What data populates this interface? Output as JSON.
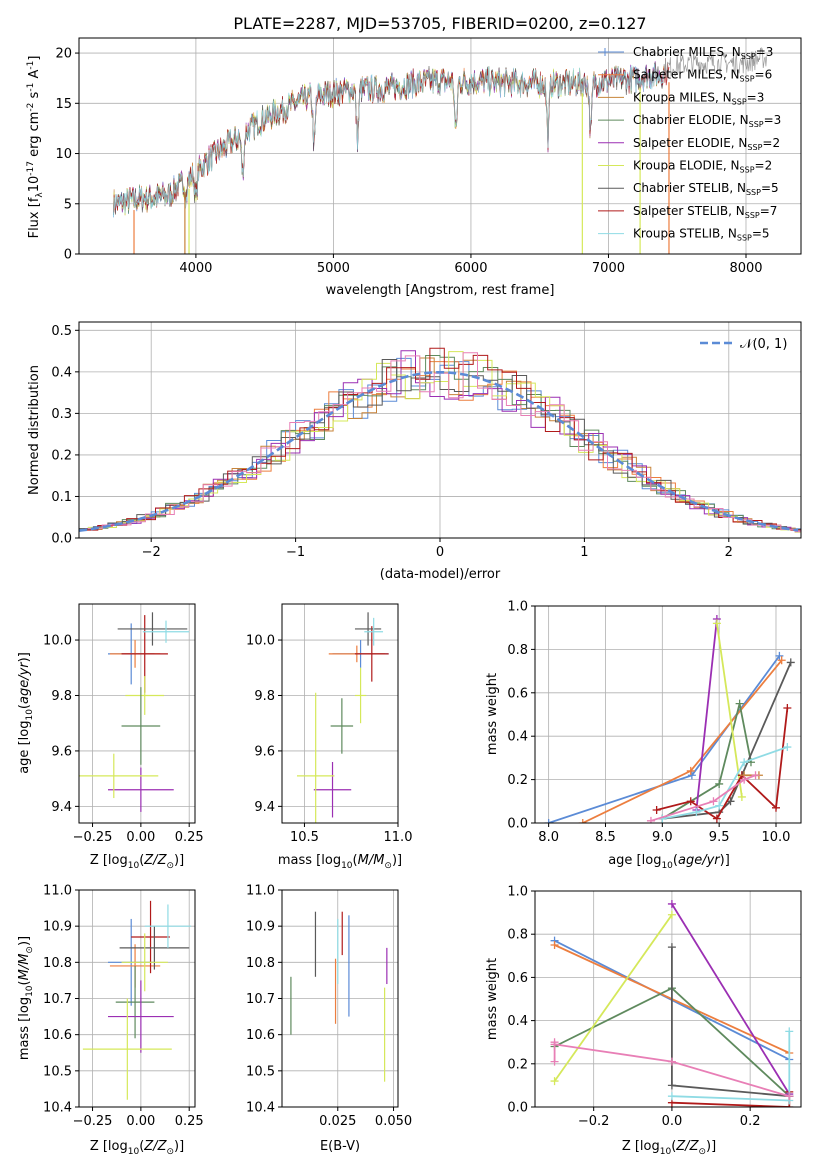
{
  "figure_title": "PLATE=2287, MJD=53705, FIBERID=0200, z=0.127",
  "series_styles": [
    {
      "name": "Chabrier MILES",
      "nssp": "3",
      "color": "#5b8bd6"
    },
    {
      "name": "Salpeter MILES",
      "nssp": "6",
      "color": "#ec7e3f"
    },
    {
      "name": "Kroupa MILES",
      "nssp": "3",
      "color": "#c7843a"
    },
    {
      "name": "Chabrier ELODIE",
      "nssp": "3",
      "color": "#5f8a5e"
    },
    {
      "name": "Salpeter ELODIE",
      "nssp": "2",
      "color": "#9b2fb3"
    },
    {
      "name": "Kroupa ELODIE",
      "nssp": "2",
      "color": "#d5e85a"
    },
    {
      "name": "Chabrier STELIB",
      "nssp": "5",
      "color": "#5a5a5a"
    },
    {
      "name": "Salpeter STELIB",
      "nssp": "7",
      "color": "#b01a1a"
    },
    {
      "name": "Kroupa STELIB",
      "nssp": "5",
      "color": "#8fdbe4"
    }
  ],
  "chart_data": [
    {
      "id": "spectrum",
      "type": "line",
      "xlabel": "wavelength [Angstrom, rest frame]",
      "ylabel": "Flux [f$_\\lambda$10$^{-17}$ erg cm$^{-2}$ s$^{-1}$ A$^{-1}$]",
      "xlim": [
        3150,
        8400
      ],
      "ylim": [
        0,
        21.5
      ],
      "xticks": [
        4000,
        5000,
        6000,
        7000,
        8000
      ],
      "yticks": [
        0,
        5,
        10,
        15,
        20
      ],
      "legend_position": "top-right",
      "legend": [
        {
          "label": "Chabrier MILES, N",
          "sub": "SSP",
          "val": "=3"
        },
        {
          "label": "Salpeter MILES, N",
          "sub": "SSP",
          "val": "=6"
        },
        {
          "label": "Kroupa MILES, N",
          "sub": "SSP",
          "val": "=3"
        },
        {
          "label": "Chabrier ELODIE, N",
          "sub": "SSP",
          "val": "=3"
        },
        {
          "label": "Salpeter ELODIE, N",
          "sub": "SSP",
          "val": "=2"
        },
        {
          "label": "Kroupa ELODIE, N",
          "sub": "SSP",
          "val": "=2"
        },
        {
          "label": "Chabrier STELIB, N",
          "sub": "SSP",
          "val": "=5"
        },
        {
          "label": "Salpeter STELIB, N",
          "sub": "SSP",
          "val": "=7"
        },
        {
          "label": "Kroupa STELIB, N",
          "sub": "SSP",
          "val": "=5"
        }
      ],
      "continuum": [
        [
          3400,
          5
        ],
        [
          3600,
          5.5
        ],
        [
          3800,
          5.8
        ],
        [
          3950,
          7.5
        ],
        [
          4100,
          9.5
        ],
        [
          4300,
          11.5
        ],
        [
          4500,
          13.5
        ],
        [
          4800,
          15.5
        ],
        [
          5100,
          16.3
        ],
        [
          5400,
          16.5
        ],
        [
          5700,
          17.2
        ],
        [
          6000,
          17.2
        ],
        [
          6400,
          17
        ],
        [
          6800,
          17
        ],
        [
          7200,
          17.5
        ],
        [
          7600,
          18.5
        ],
        [
          8000,
          18.5
        ],
        [
          8100,
          19
        ]
      ],
      "dips": [
        [
          3930,
          4
        ],
        [
          4000,
          8
        ],
        [
          4340,
          11
        ],
        [
          4860,
          14
        ],
        [
          5175,
          13.5
        ],
        [
          5890,
          15
        ],
        [
          6560,
          15.5
        ],
        [
          6870,
          14
        ]
      ],
      "model_starts": [
        3400,
        3400,
        3400,
        3450,
        3400,
        3400,
        3400,
        3400,
        3400
      ],
      "model_ends": [
        7400,
        7400,
        7400,
        7400,
        7400,
        6800,
        7400,
        7440,
        7400
      ],
      "cutoffs": [
        {
          "x": 3920,
          "color": "#c7843a"
        },
        {
          "x": 3950,
          "color": "#d5e85a"
        },
        {
          "x": 3550,
          "color": "#ec7e3f"
        },
        {
          "x": 6810,
          "color": "#d5e85a"
        },
        {
          "x": 7440,
          "color": "#ec7e3f"
        },
        {
          "x": 7230,
          "color": "#d5e85a"
        }
      ]
    },
    {
      "id": "residual_hist",
      "type": "step",
      "xlabel": "(data-model)/error",
      "ylabel": "Normed distribution",
      "xlim": [
        -2.5,
        2.5
      ],
      "ylim": [
        0,
        0.52
      ],
      "xticks": [
        -2,
        -1,
        0,
        1,
        2
      ],
      "yticks": [
        0.0,
        0.1,
        0.2,
        0.3,
        0.4,
        0.5
      ],
      "legend": "𝒩(0, 1)",
      "legend_position": "top-right",
      "bin_width": 0.1,
      "reference": {
        "name": "N(0,1)",
        "color": "#5b8bd6",
        "style": "dashed"
      }
    },
    {
      "id": "age_vs_Z",
      "type": "errorbar",
      "xlabel": "Z [log$_{10}$($Z/Z_\\odot$)]",
      "ylabel": "age  [log$_{10}$($age/yr$)]",
      "xlim": [
        -0.32,
        0.28
      ],
      "ylim": [
        9.34,
        10.13
      ],
      "xticks": [
        -0.25,
        0.0,
        0.25
      ],
      "yticks": [
        9.4,
        9.6,
        9.8,
        10.0
      ],
      "points": [
        {
          "x": -0.05,
          "y": 9.95,
          "xerr": 0.12,
          "yerr": 0.11,
          "c": 0
        },
        {
          "x": -0.03,
          "y": 9.95,
          "xerr": 0.13,
          "yerr": 0.05,
          "c": 1
        },
        {
          "x": 0.02,
          "y": 9.95,
          "xerr": 0.12,
          "yerr": 0.14,
          "c": 7
        },
        {
          "x": 0.06,
          "y": 10.04,
          "xerr": 0.18,
          "yerr": 0.06,
          "c": 6
        },
        {
          "x": 0.13,
          "y": 10.03,
          "xerr": 0.12,
          "yerr": 0.04,
          "c": 8
        },
        {
          "x": 0.02,
          "y": 9.8,
          "xerr": 0.1,
          "yerr": 0.07,
          "c": 5
        },
        {
          "x": 0.0,
          "y": 9.69,
          "xerr": 0.1,
          "yerr": 0.14,
          "c": 3
        },
        {
          "x": 0.0,
          "y": 9.46,
          "xerr": 0.17,
          "yerr": 0.08,
          "c": 4
        },
        {
          "x": -0.14,
          "y": 9.51,
          "xerr": 0.23,
          "yerr": 0.08,
          "c": 5
        }
      ]
    },
    {
      "id": "age_vs_mass",
      "type": "errorbar",
      "xlabel": "mass [log$_{10}$($M/M_\\odot$)]",
      "ylabel": "",
      "xlim": [
        10.38,
        11.0
      ],
      "ylim": [
        9.34,
        10.13
      ],
      "xticks": [
        10.5,
        11.0
      ],
      "yticks": [
        9.4,
        9.6,
        9.8,
        10.0
      ],
      "points": [
        {
          "x": 10.8,
          "y": 9.95,
          "xerr": 0.15,
          "yerr": 0.05,
          "c": 0
        },
        {
          "x": 10.78,
          "y": 9.95,
          "xerr": 0.15,
          "yerr": 0.03,
          "c": 1
        },
        {
          "x": 10.86,
          "y": 9.95,
          "xerr": 0.09,
          "yerr": 0.1,
          "c": 7
        },
        {
          "x": 10.84,
          "y": 10.04,
          "xerr": 0.07,
          "yerr": 0.06,
          "c": 6
        },
        {
          "x": 10.87,
          "y": 10.03,
          "xerr": 0.05,
          "yerr": 0.05,
          "c": 8
        },
        {
          "x": 10.8,
          "y": 9.8,
          "xerr": 0.03,
          "yerr": 0.1,
          "c": 5
        },
        {
          "x": 10.7,
          "y": 9.69,
          "xerr": 0.06,
          "yerr": 0.1,
          "c": 3
        },
        {
          "x": 10.65,
          "y": 9.46,
          "xerr": 0.1,
          "yerr": 0.1,
          "c": 4
        },
        {
          "x": 10.56,
          "y": 9.51,
          "xerr": 0.1,
          "yerr": 0.3,
          "c": 5
        }
      ]
    },
    {
      "id": "weight_vs_age",
      "type": "line",
      "xlabel": "age  [log$_{10}$($age/yr$)]",
      "ylabel": "mass weight",
      "xlim": [
        7.88,
        10.22
      ],
      "ylim": [
        0,
        1.0
      ],
      "xticks": [
        8.0,
        8.5,
        9.0,
        9.5,
        10.0
      ],
      "yticks": [
        0.0,
        0.2,
        0.4,
        0.6,
        0.8,
        1.0
      ],
      "series": [
        {
          "c": 0,
          "x": [
            8.0,
            9.26,
            10.03
          ],
          "y": [
            0.0,
            0.22,
            0.77
          ]
        },
        {
          "c": 1,
          "x": [
            8.3,
            9.25,
            10.05
          ],
          "y": [
            0.0,
            0.24,
            0.75
          ]
        },
        {
          "c": 3,
          "x": [
            9.0,
            9.5,
            9.68,
            9.78
          ],
          "y": [
            0.02,
            0.18,
            0.55,
            0.28
          ]
        },
        {
          "c": 4,
          "x": [
            9.3,
            9.48
          ],
          "y": [
            0.06,
            0.94
          ]
        },
        {
          "c": 5,
          "x": [
            9.48,
            9.7
          ],
          "y": [
            0.92,
            0.12
          ]
        },
        {
          "c": 6,
          "x": [
            9.0,
            9.5,
            9.6,
            9.7,
            10.13
          ],
          "y": [
            0.02,
            0.05,
            0.1,
            0.22,
            0.74
          ]
        },
        {
          "c": 7,
          "x": [
            8.95,
            9.25,
            9.48,
            9.7,
            10.0,
            10.1
          ],
          "y": [
            0.06,
            0.1,
            0.02,
            0.22,
            0.07,
            0.53
          ]
        },
        {
          "c": 8,
          "x": [
            9.0,
            9.3,
            9.5,
            9.72,
            10.1
          ],
          "y": [
            0.02,
            0.05,
            0.08,
            0.28,
            0.35
          ]
        },
        {
          "c": 2,
          "x": [
            9.72,
            9.85
          ],
          "y": [
            0.22,
            0.22
          ]
        },
        {
          "c": "pink",
          "x": [
            8.9,
            9.45,
            9.72,
            9.82
          ],
          "y": [
            0.01,
            0.1,
            0.2,
            0.22
          ]
        }
      ]
    },
    {
      "id": "mass_vs_Z",
      "type": "errorbar",
      "xlabel": "Z [log$_{10}$($Z/Z_\\odot$)]",
      "ylabel": "mass [log$_{10}$($M/M_\\odot$)]",
      "xlim": [
        -0.32,
        0.28
      ],
      "ylim": [
        10.4,
        11.0
      ],
      "xticks": [
        -0.25,
        0.0,
        0.25
      ],
      "yticks": [
        10.4,
        10.5,
        10.6,
        10.7,
        10.8,
        10.9,
        11.0
      ],
      "points": [
        {
          "x": -0.05,
          "y": 10.8,
          "xerr": 0.12,
          "yerr": 0.12,
          "c": 0
        },
        {
          "x": -0.03,
          "y": 10.79,
          "xerr": 0.13,
          "yerr": 0.06,
          "c": 1
        },
        {
          "x": 0.05,
          "y": 10.87,
          "xerr": 0.1,
          "yerr": 0.1,
          "c": 7
        },
        {
          "x": 0.07,
          "y": 10.84,
          "xerr": 0.18,
          "yerr": 0.06,
          "c": 6
        },
        {
          "x": 0.14,
          "y": 10.9,
          "xerr": 0.12,
          "yerr": 0.06,
          "c": 8
        },
        {
          "x": 0.02,
          "y": 10.8,
          "xerr": 0.12,
          "yerr": 0.08,
          "c": 5
        },
        {
          "x": -0.03,
          "y": 10.69,
          "xerr": 0.1,
          "yerr": 0.1,
          "c": 3
        },
        {
          "x": 0.0,
          "y": 10.65,
          "xerr": 0.17,
          "yerr": 0.1,
          "c": 4
        },
        {
          "x": -0.07,
          "y": 10.56,
          "xerr": 0.23,
          "yerr": 0.14,
          "c": 5
        }
      ]
    },
    {
      "id": "mass_vs_ebv",
      "type": "errorbar",
      "xlabel": "E(B-V)",
      "ylabel": "",
      "xlim": [
        0.0,
        0.052
      ],
      "ylim": [
        10.4,
        11.0
      ],
      "xticks": [
        0.025,
        0.05
      ],
      "yticks": [
        10.4,
        10.5,
        10.6,
        10.7,
        10.8,
        10.9,
        11.0
      ],
      "points": [
        {
          "x": 0.015,
          "y": 10.85,
          "xerr": 0,
          "yerr": 0.09,
          "c": 6
        },
        {
          "x": 0.004,
          "y": 10.68,
          "xerr": 0,
          "yerr": 0.08,
          "c": 3
        },
        {
          "x": 0.024,
          "y": 10.72,
          "xerr": 0,
          "yerr": 0.09,
          "c": 1
        },
        {
          "x": 0.025,
          "y": 10.83,
          "xerr": 0,
          "yerr": 0.09,
          "c": 8
        },
        {
          "x": 0.027,
          "y": 10.88,
          "xerr": 0,
          "yerr": 0.06,
          "c": 7
        },
        {
          "x": 0.03,
          "y": 10.79,
          "xerr": 0,
          "yerr": 0.14,
          "c": 0
        },
        {
          "x": 0.046,
          "y": 10.6,
          "xerr": 0,
          "yerr": 0.13,
          "c": 5
        },
        {
          "x": 0.047,
          "y": 10.79,
          "xerr": 0,
          "yerr": 0.05,
          "c": 4
        }
      ]
    },
    {
      "id": "weight_vs_Z",
      "type": "line",
      "xlabel": "Z [log$_{10}$($Z/Z_\\odot$)]",
      "ylabel": "mass weight",
      "xlim": [
        -0.35,
        0.33
      ],
      "ylim": [
        0,
        1.0
      ],
      "xticks": [
        -0.2,
        0.0,
        0.2
      ],
      "yticks": [
        0.0,
        0.2,
        0.4,
        0.6,
        0.8,
        1.0
      ],
      "series": [
        {
          "c": 0,
          "x": [
            -0.3,
            0.3
          ],
          "y": [
            0.77,
            0.22
          ]
        },
        {
          "c": 1,
          "x": [
            -0.3,
            0.3
          ],
          "y": [
            0.75,
            0.25
          ]
        },
        {
          "c": 3,
          "x": [
            -0.3,
            0.0,
            0.3
          ],
          "y": [
            0.28,
            0.55,
            0.05
          ]
        },
        {
          "c": 4,
          "x": [
            0.0,
            0.3
          ],
          "y": [
            0.94,
            0.06
          ]
        },
        {
          "c": 5,
          "x": [
            -0.3,
            0.0
          ],
          "y": [
            0.12,
            0.89
          ]
        },
        {
          "c": 6,
          "x": [
            0.0,
            0.0,
            0.3
          ],
          "y": [
            0.74,
            0.1,
            0.05
          ]
        },
        {
          "c": 7,
          "x": [
            0.0,
            0.3,
            0.3
          ],
          "y": [
            0.02,
            0.0,
            0.07
          ]
        },
        {
          "c": 8,
          "x": [
            0.0,
            0.3,
            0.3
          ],
          "y": [
            0.05,
            0.03,
            0.35
          ]
        },
        {
          "c": "pink",
          "x": [
            -0.3,
            0.0,
            0.3
          ],
          "y": [
            0.29,
            0.21,
            0.05
          ]
        },
        {
          "c": "pink",
          "x": [
            -0.3,
            -0.3
          ],
          "y": [
            0.21,
            0.3
          ]
        }
      ]
    }
  ]
}
